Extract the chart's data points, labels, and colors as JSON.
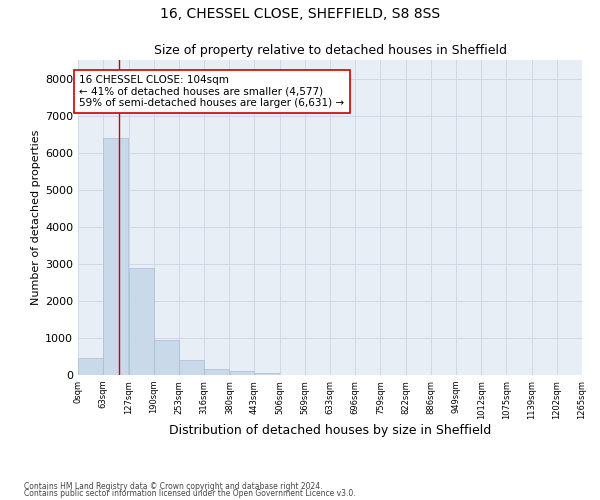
{
  "title": "16, CHESSEL CLOSE, SHEFFIELD, S8 8SS",
  "subtitle": "Size of property relative to detached houses in Sheffield",
  "xlabel": "Distribution of detached houses by size in Sheffield",
  "ylabel": "Number of detached properties",
  "bin_edges": [
    0,
    63,
    127,
    190,
    253,
    316,
    380,
    443,
    506,
    569,
    633,
    696,
    759,
    822,
    886,
    949,
    1012,
    1075,
    1139,
    1202,
    1265
  ],
  "bar_heights": [
    450,
    6400,
    2900,
    950,
    400,
    150,
    100,
    60,
    0,
    0,
    0,
    0,
    0,
    0,
    0,
    0,
    0,
    0,
    0,
    0
  ],
  "bar_color": "#c9d9ea",
  "bar_edgecolor": "#a8bdd0",
  "vline_x": 104,
  "vline_color": "#cc0000",
  "annotation_text": "16 CHESSEL CLOSE: 104sqm\n← 41% of detached houses are smaller (4,577)\n59% of semi-detached houses are larger (6,631) →",
  "annotation_box_color": "#ffffff",
  "annotation_box_edgecolor": "#cc0000",
  "ylim": [
    0,
    8500
  ],
  "yticks": [
    0,
    1000,
    2000,
    3000,
    4000,
    5000,
    6000,
    7000,
    8000
  ],
  "tick_labels": [
    "0sqm",
    "63sqm",
    "127sqm",
    "190sqm",
    "253sqm",
    "316sqm",
    "380sqm",
    "443sqm",
    "506sqm",
    "569sqm",
    "633sqm",
    "696sqm",
    "759sqm",
    "822sqm",
    "886sqm",
    "949sqm",
    "1012sqm",
    "1075sqm",
    "1139sqm",
    "1202sqm",
    "1265sqm"
  ],
  "footnote1": "Contains HM Land Registry data © Crown copyright and database right 2024.",
  "footnote2": "Contains public sector information licensed under the Open Government Licence v3.0.",
  "background_color": "#ffffff",
  "grid_color": "#d0d8e8",
  "axes_bg_color": "#e8eef5",
  "title_fontsize": 10,
  "subtitle_fontsize": 9,
  "ylabel_fontsize": 8,
  "xlabel_fontsize": 9,
  "ytick_fontsize": 8,
  "xtick_fontsize": 6
}
